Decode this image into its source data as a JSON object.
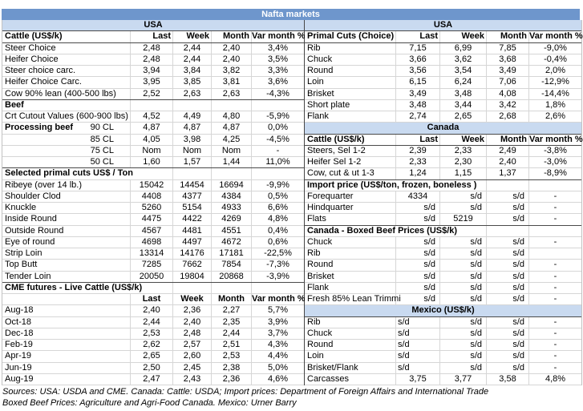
{
  "title": "Nafta markets",
  "colors": {
    "title_bar_bg": "#6e96cc",
    "title_text": "#ffffff",
    "band_bg": "#c9daf0"
  },
  "tables": {
    "left": {
      "rows": [
        {
          "t": "band",
          "label": "USA"
        },
        {
          "t": "colhead",
          "label": "Cattle (US$/k)",
          "cells": [
            "Last",
            "Week",
            "Month",
            "Var month %"
          ]
        },
        {
          "t": "data",
          "label": "Steer Choice",
          "cells": [
            "2,48",
            "2,44",
            "2,40",
            "3,4%"
          ]
        },
        {
          "t": "data",
          "label": "Heifer Choice",
          "cells": [
            "2,48",
            "2,44",
            "2,40",
            "3,5%"
          ]
        },
        {
          "t": "data",
          "label": "Steer choice carc.",
          "cells": [
            "3,94",
            "3,84",
            "3,82",
            "3,3%"
          ]
        },
        {
          "t": "data",
          "label": "Heifer Choice Carc.",
          "cells": [
            "3,95",
            "3,85",
            "3,81",
            "3,6%"
          ]
        },
        {
          "t": "data",
          "label": "Cow 90% lean (400-500 lbs)",
          "cells": [
            "2,52",
            "2,63",
            "2,63",
            "-4,3%"
          ]
        },
        {
          "t": "sect",
          "label": "Beef",
          "span": 1
        },
        {
          "t": "data",
          "label": "Crt Cutout Values (600-900 lbs)",
          "cells": [
            "4,52",
            "4,49",
            "4,80",
            "-5,9%"
          ]
        },
        {
          "t": "data",
          "label": "Processing beef",
          "sublabel": "90 CL",
          "bold_label": true,
          "cells": [
            "4,87",
            "4,87",
            "4,87",
            "0,0%"
          ]
        },
        {
          "t": "data",
          "label": "",
          "sublabel": "85 CL",
          "cells": [
            "4,05",
            "3,98",
            "4,25",
            "-4,5%"
          ]
        },
        {
          "t": "data",
          "label": "",
          "sublabel": "75 CL",
          "cells": [
            "Nom",
            "Nom",
            "Nom",
            "-"
          ]
        },
        {
          "t": "data",
          "label": "",
          "sublabel": "50 CL",
          "cells": [
            "1,60",
            "1,57",
            "1,44",
            "11,0%"
          ]
        },
        {
          "t": "sect",
          "label": "Selected primal cuts US$ / Ton",
          "span": 2
        },
        {
          "t": "data",
          "label": "Ribeye (over 14 lb.)",
          "cells": [
            "15042",
            "14454",
            "16694",
            "-9,9%"
          ]
        },
        {
          "t": "data",
          "label": "Shoulder Clod",
          "cells": [
            "4408",
            "4377",
            "4384",
            "0,5%"
          ]
        },
        {
          "t": "data",
          "label": "Knuckle",
          "cells": [
            "5260",
            "5154",
            "4933",
            "6,6%"
          ]
        },
        {
          "t": "data",
          "label": "Inside Round",
          "cells": [
            "4475",
            "4422",
            "4269",
            "4,8%"
          ]
        },
        {
          "t": "data",
          "label": "Outside Round",
          "cells": [
            "4567",
            "4481",
            "4551",
            "0,4%"
          ]
        },
        {
          "t": "data",
          "label": "Eye of round",
          "cells": [
            "4698",
            "4497",
            "4672",
            "0,6%"
          ]
        },
        {
          "t": "data",
          "label": "Strip Loin",
          "cells": [
            "13314",
            "14176",
            "17181",
            "-22,5%"
          ]
        },
        {
          "t": "data",
          "label": "Top Butt",
          "cells": [
            "7285",
            "7662",
            "7854",
            "-7,3%"
          ]
        },
        {
          "t": "data",
          "label": "Tender Loin",
          "cells": [
            "20050",
            "19804",
            "20868",
            "-3,9%"
          ]
        },
        {
          "t": "sect",
          "label": "CME futures - Live Cattle (US$/k)",
          "span": 2
        },
        {
          "t": "colhead_center",
          "label": "",
          "cells": [
            "Last",
            "Week",
            "Month",
            "Var month %"
          ]
        },
        {
          "t": "data",
          "label": "Aug-18",
          "cells": [
            "2,40",
            "2,36",
            "2,27",
            "5,7%"
          ]
        },
        {
          "t": "data",
          "label": "Oct-18",
          "cells": [
            "2,44",
            "2,40",
            "2,35",
            "3,9%"
          ]
        },
        {
          "t": "data",
          "label": "Dec-18",
          "cells": [
            "2,53",
            "2,48",
            "2,44",
            "3,7%"
          ]
        },
        {
          "t": "data",
          "label": "Feb-19",
          "cells": [
            "2,62",
            "2,57",
            "2,51",
            "4,3%"
          ]
        },
        {
          "t": "data",
          "label": "Apr-19",
          "cells": [
            "2,65",
            "2,60",
            "2,53",
            "4,4%"
          ]
        },
        {
          "t": "data",
          "label": "Jun-19",
          "cells": [
            "2,50",
            "2,45",
            "2,38",
            "5,0%"
          ]
        },
        {
          "t": "data",
          "label": "Aug-19",
          "cells": [
            "2,47",
            "2,43",
            "2,36",
            "4,6%"
          ]
        }
      ]
    },
    "right": {
      "rows": [
        {
          "t": "band",
          "label": "USA"
        },
        {
          "t": "colhead",
          "label": "Primal Cuts (Choice)",
          "cells": [
            "Last",
            "Week",
            "Month",
            "Var month %"
          ]
        },
        {
          "t": "data",
          "label": "Rib",
          "cells": [
            "7,15",
            "6,99",
            "7,85",
            "-9,0%"
          ]
        },
        {
          "t": "data",
          "label": "Chuck",
          "cells": [
            "3,66",
            "3,62",
            "3,68",
            "-0,4%"
          ]
        },
        {
          "t": "data",
          "label": "Round",
          "cells": [
            "3,56",
            "3,54",
            "3,49",
            "2,0%"
          ]
        },
        {
          "t": "data",
          "label": "Loin",
          "cells": [
            "6,15",
            "6,24",
            "7,06",
            "-12,9%"
          ]
        },
        {
          "t": "data",
          "label": "Brisket",
          "cells": [
            "3,49",
            "3,48",
            "4,08",
            "-14,4%"
          ]
        },
        {
          "t": "data",
          "label": "Short plate",
          "cells": [
            "3,48",
            "3,44",
            "3,42",
            "1,8%"
          ]
        },
        {
          "t": "data",
          "label": "Flank",
          "cells": [
            "2,74",
            "2,65",
            "2,68",
            "2,6%"
          ]
        },
        {
          "t": "band",
          "label": "Canada"
        },
        {
          "t": "colhead",
          "label": "Cattle (US$/k)",
          "cells": [
            "Last",
            "Week",
            "Month",
            "Var month %"
          ]
        },
        {
          "t": "data",
          "label": "Steers, Sel 1-2",
          "cells": [
            "2,39",
            "2,33",
            "2,49",
            "-3,8%"
          ]
        },
        {
          "t": "data",
          "label": "Heifer Sel 1-2",
          "cells": [
            "2,33",
            "2,30",
            "2,40",
            "-3,0%"
          ]
        },
        {
          "t": "data",
          "label": "Cow, cut & ut 1-3",
          "cells": [
            "1,24",
            "1,15",
            "1,37",
            "-8,9%"
          ]
        },
        {
          "t": "sect",
          "label": "Import price (US$/ton, frozen, boneless )",
          "span": 3
        },
        {
          "t": "data",
          "label": "Forequarter",
          "cells": [
            "4334",
            "s/d",
            "s/d",
            "-"
          ]
        },
        {
          "t": "data",
          "label": "Hindquarter",
          "cells": [
            "s/d",
            "s/d",
            "s/d",
            "-"
          ]
        },
        {
          "t": "data",
          "label": "Flats",
          "cells": [
            "s/d",
            "5219",
            "s/d",
            "-"
          ]
        },
        {
          "t": "sect",
          "label": "Canada - Boxed Beef Prices (US$/k)",
          "span": 3
        },
        {
          "t": "data",
          "label": "Chuck",
          "cells": [
            "s/d",
            "s/d",
            "s/d",
            "-"
          ]
        },
        {
          "t": "data",
          "label": "Rib",
          "cells": [
            "s/d",
            "s/d",
            "s/d",
            ""
          ]
        },
        {
          "t": "data",
          "label": "Round",
          "cells": [
            "s/d",
            "s/d",
            "s/d",
            "-"
          ]
        },
        {
          "t": "data",
          "label": "Brisket",
          "cells": [
            "s/d",
            "s/d",
            "s/d",
            "-"
          ]
        },
        {
          "t": "data",
          "label": "Flank",
          "cells": [
            "s/d",
            "s/d",
            "s/d",
            "-"
          ]
        },
        {
          "t": "data",
          "label": "Fresh 85% Lean Trimmi",
          "cells": [
            "s/d",
            "s/d",
            "s/d",
            "-"
          ]
        },
        {
          "t": "band",
          "label": "Mexico (US$/k)"
        },
        {
          "t": "data",
          "label": "Rib",
          "first_left": true,
          "cells": [
            "s/d",
            "s/d",
            "s/d",
            "-"
          ]
        },
        {
          "t": "data",
          "label": "Chuck",
          "first_left": true,
          "cells": [
            "s/d",
            "s/d",
            "s/d",
            "-"
          ]
        },
        {
          "t": "data",
          "label": "Round",
          "first_left": true,
          "cells": [
            "s/d",
            "s/d",
            "s/d",
            "-"
          ]
        },
        {
          "t": "data",
          "label": "Loin",
          "first_left": true,
          "cells": [
            "s/d",
            "s/d",
            "s/d",
            "-"
          ]
        },
        {
          "t": "data",
          "label": "Brisket/Flank",
          "first_left": true,
          "cells": [
            "s/d",
            "s/d",
            "s/d",
            "-"
          ]
        },
        {
          "t": "data",
          "label": "Carcasses",
          "cells": [
            "3,75",
            "3,77",
            "3,58",
            "4,8%"
          ]
        }
      ]
    }
  },
  "footer": {
    "line1": "Sources: USA: USDA and CME. Canada: Cattle: USDA; Import prices: Department of Foreign Affairs and International Trade",
    "line2": "Boxed Beef Prices: Agriculture and Agri-Food Canada. Mexico: Urner Barry"
  }
}
